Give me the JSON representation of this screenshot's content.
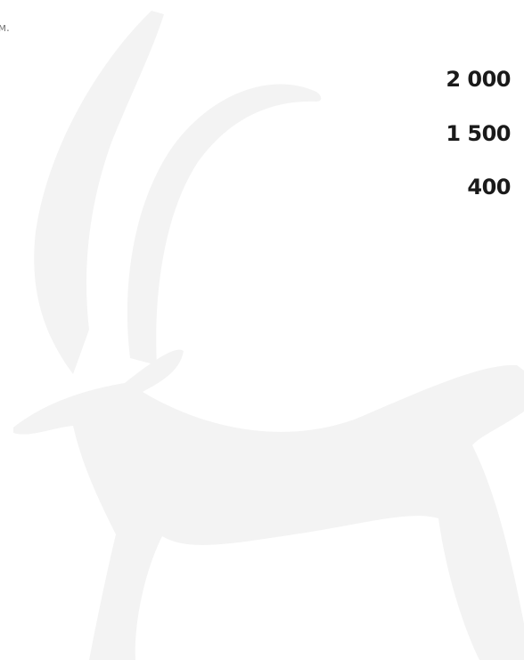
{
  "text_fragment": "м.",
  "figures": [
    "2 000",
    "1 500",
    "400"
  ]
}
